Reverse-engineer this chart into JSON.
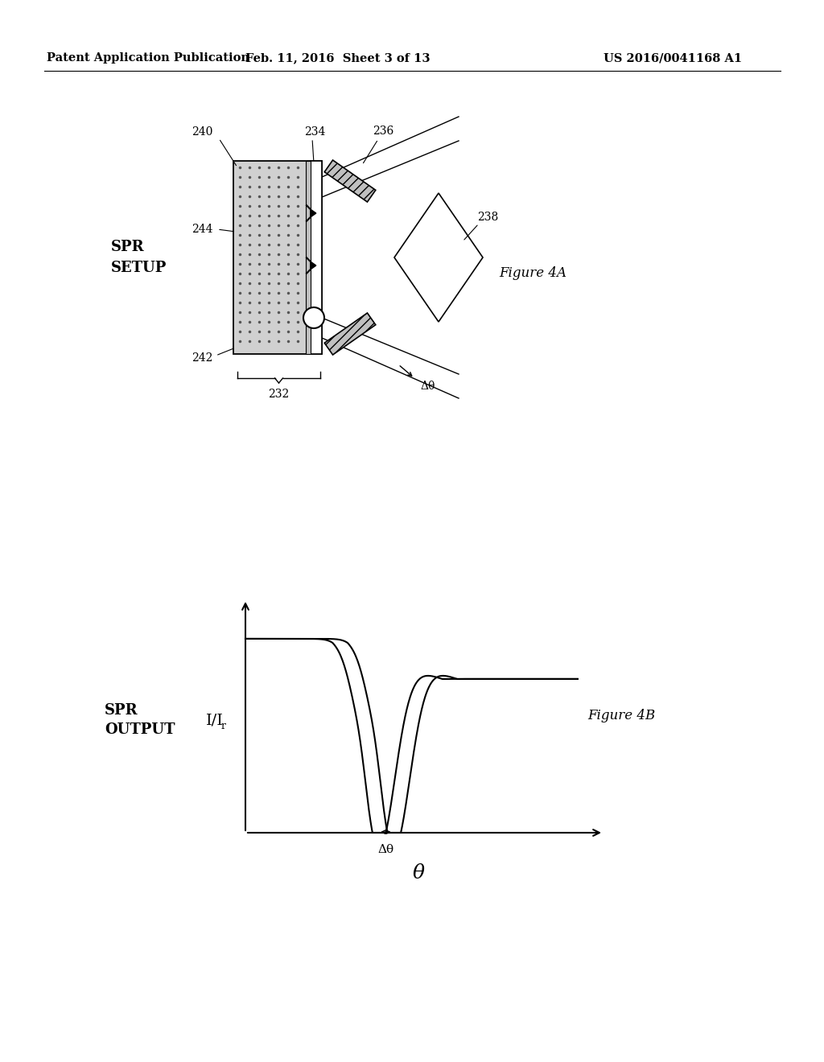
{
  "bg_color": "#ffffff",
  "header_left": "Patent Application Publication",
  "header_mid": "Feb. 11, 2016  Sheet 3 of 13",
  "header_right": "US 2016/0041168 A1",
  "fig4a_label": "Figure 4A",
  "fig4b_label": "Figure 4B",
  "spr_setup_label": "SPR\nSETUP",
  "spr_output_label": "SPR\nOUTPUT",
  "ylabel_4b": "I/I",
  "ylabel_4b_sub": "r",
  "xlabel_4b": "θ",
  "delta_theta": "Δθ",
  "label_240": "240",
  "label_234": "234",
  "label_236": "236",
  "label_244": "244",
  "label_238": "238",
  "label_242": "242",
  "label_232": "232"
}
